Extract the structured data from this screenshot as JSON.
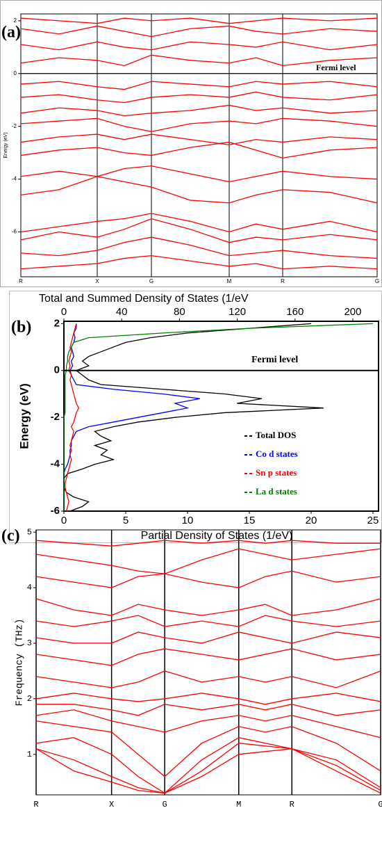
{
  "chart_data": [
    {
      "type": "line",
      "panel": "(a)",
      "ylabel": "Energy (eV)",
      "annotation": "Fermi level",
      "hline": 0,
      "color": "#ff0000",
      "x": [
        0,
        0.55,
        1.1,
        1.49,
        1.88,
        2.44,
        3.0,
        3.385,
        3.77,
        4.45,
        5.13
      ],
      "xlim": [
        0,
        5.13
      ],
      "xticks": [
        {
          "value": 0,
          "label": "R"
        },
        {
          "value": 1.1,
          "label": "X"
        },
        {
          "value": 1.88,
          "label": "G"
        },
        {
          "value": 3.0,
          "label": "M"
        },
        {
          "value": 3.77,
          "label": "R"
        },
        {
          "value": 5.13,
          "label": "G"
        }
      ],
      "ylim": [
        -7.7,
        2.26
      ],
      "yticks": [
        -6,
        -4,
        -2,
        0,
        2
      ],
      "series": [
        {
          "values": [
            -7.4,
            -7.3,
            -7.2,
            -7.0,
            -6.9,
            -7.1,
            -7.3,
            -7.2,
            -7.4,
            -7.3,
            -7.4
          ]
        },
        {
          "values": [
            -6.8,
            -6.9,
            -6.7,
            -6.4,
            -6.2,
            -6.5,
            -6.9,
            -6.8,
            -6.7,
            -6.9,
            -7.0
          ]
        },
        {
          "values": [
            -6.3,
            -6.0,
            -6.2,
            -5.9,
            -5.5,
            -5.9,
            -6.4,
            -6.2,
            -6.3,
            -6.1,
            -6.3
          ]
        },
        {
          "values": [
            -6.0,
            -5.8,
            -5.6,
            -5.5,
            -5.3,
            -5.6,
            -6.0,
            -5.7,
            -5.9,
            -5.6,
            -6.0
          ]
        },
        {
          "values": [
            -4.6,
            -4.4,
            -3.9,
            -4.1,
            -4.3,
            -4.8,
            -4.9,
            -4.6,
            -4.4,
            -4.5,
            -4.9
          ]
        },
        {
          "values": [
            -3.9,
            -3.7,
            -3.9,
            -3.6,
            -3.5,
            -3.8,
            -4.1,
            -3.9,
            -3.7,
            -3.9,
            -4.0
          ]
        },
        {
          "values": [
            -3.1,
            -2.9,
            -2.8,
            -3.0,
            -3.1,
            -2.8,
            -2.6,
            -2.9,
            -3.2,
            -2.9,
            -2.8
          ]
        },
        {
          "values": [
            -2.6,
            -2.4,
            -2.3,
            -2.5,
            -2.3,
            -2.5,
            -2.7,
            -2.5,
            -2.6,
            -2.4,
            -2.5
          ]
        },
        {
          "values": [
            -1.9,
            -1.8,
            -1.7,
            -2.0,
            -2.2,
            -1.9,
            -1.8,
            -1.9,
            -1.7,
            -1.8,
            -2.0
          ]
        },
        {
          "values": [
            -1.5,
            -1.3,
            -1.4,
            -1.6,
            -1.5,
            -1.4,
            -1.2,
            -1.4,
            -1.3,
            -1.5,
            -1.4
          ]
        },
        {
          "values": [
            -0.9,
            -0.8,
            -1.0,
            -1.1,
            -0.9,
            -0.8,
            -0.9,
            -0.7,
            -0.9,
            -1.0,
            -0.8
          ]
        },
        {
          "values": [
            -0.4,
            -0.3,
            -0.5,
            -0.6,
            -0.3,
            -0.4,
            -0.5,
            -0.3,
            -0.4,
            -0.3,
            -0.5
          ]
        },
        {
          "values": [
            0.4,
            0.6,
            0.5,
            0.3,
            0.7,
            0.5,
            0.4,
            0.6,
            0.3,
            0.5,
            0.6
          ]
        },
        {
          "values": [
            1.1,
            0.9,
            1.2,
            1.0,
            0.9,
            1.2,
            1.1,
            1.0,
            1.2,
            0.9,
            1.1
          ]
        },
        {
          "values": [
            1.7,
            1.5,
            1.8,
            1.6,
            1.4,
            1.7,
            1.8,
            1.6,
            1.5,
            1.7,
            1.6
          ]
        },
        {
          "values": [
            2.1,
            2.0,
            1.9,
            2.1,
            2.0,
            2.1,
            1.9,
            2.0,
            2.1,
            2.0,
            2.1
          ]
        }
      ]
    },
    {
      "type": "line",
      "orientation": "horizontal",
      "panel": "(b)",
      "title": "Total and Summed Density of States (1/eV",
      "xlabel": "Partial Density of States (1/eV)",
      "ylabel": "Energy (eV)",
      "annotation": "Fermi level",
      "hline": 0,
      "y": [
        -6,
        -5.8,
        -5.6,
        -5.4,
        -5.2,
        -5.0,
        -4.8,
        -4.6,
        -4.4,
        -4.2,
        -4.0,
        -3.8,
        -3.6,
        -3.4,
        -3.2,
        -3.0,
        -2.8,
        -2.6,
        -2.4,
        -2.2,
        -2.0,
        -1.8,
        -1.6,
        -1.4,
        -1.2,
        -1.0,
        -0.8,
        -0.6,
        -0.4,
        -0.2,
        0,
        0.2,
        0.4,
        0.6,
        0.8,
        1.0,
        1.2,
        1.4,
        1.6,
        1.8,
        2.0
      ],
      "xlim": [
        0,
        25.45
      ],
      "xticks": [
        0,
        5,
        10,
        15,
        20,
        25
      ],
      "x2lim": [
        0,
        217.8
      ],
      "x2ticks": [
        0,
        40,
        80,
        120,
        160,
        200
      ],
      "ylim": [
        -6,
        2.1
      ],
      "yticks": [
        -6,
        -4,
        -2,
        0,
        2
      ],
      "series": [
        {
          "name": "Total DOS",
          "color": "#000000",
          "values": [
            0.5,
            1.5,
            2,
            0.8,
            0.2,
            0,
            0,
            0,
            0.3,
            1.5,
            2.5,
            4,
            3,
            3.5,
            2.5,
            3.8,
            3,
            2.5,
            4,
            6,
            9,
            13,
            21,
            14,
            16,
            13,
            8,
            3,
            2,
            1.5,
            1,
            2,
            1.5,
            2,
            3,
            4,
            5,
            7,
            10,
            15,
            20
          ]
        },
        {
          "name": "Co d states",
          "color": "#0000ff",
          "values": [
            0,
            0,
            0,
            0,
            0,
            0,
            0,
            0,
            0,
            0.1,
            0.3,
            0.4,
            0.5,
            0.5,
            0.6,
            0.6,
            0.8,
            1,
            2,
            4,
            6,
            8,
            10,
            9,
            11,
            8,
            4,
            1,
            0.8,
            0.6,
            0.5,
            0.7,
            0.6,
            0.8,
            0.7,
            0.6,
            0.8,
            0.9,
            0.8,
            1,
            1
          ]
        },
        {
          "name": "Sn p states",
          "color": "#ff0000",
          "values": [
            0.2,
            0.3,
            0.4,
            0.3,
            0.2,
            0.1,
            0.1,
            0.2,
            0.3,
            0.4,
            0.5,
            0.6,
            0.5,
            0.6,
            0.5,
            0.6,
            0.7,
            0.8,
            0.6,
            0.8,
            0.9,
            1,
            1.2,
            1,
            0.9,
            0.8,
            0.7,
            0.6,
            0.5,
            0.6,
            0.4,
            0.5,
            0.4,
            0.5,
            0.6,
            0.5,
            0.6,
            0.7,
            0.8,
            0.9,
            1
          ]
        },
        {
          "name": "La d states",
          "color": "#008000",
          "values": [
            0,
            0,
            0,
            0,
            0,
            0,
            0,
            0,
            0,
            0,
            0,
            0,
            0,
            0,
            0,
            0,
            0,
            0,
            0,
            0,
            0,
            0.1,
            0.1,
            0.1,
            0.1,
            0.1,
            0.1,
            0.1,
            0.1,
            0.1,
            0.2,
            0.2,
            0.3,
            0.3,
            0.4,
            0.6,
            0.8,
            2,
            8,
            15,
            25
          ]
        }
      ]
    },
    {
      "type": "line",
      "panel": "(c)",
      "ylabel": "Frequency (THz)",
      "color": "#ff0000",
      "x": [
        0,
        0.54,
        1.08,
        1.46,
        1.84,
        2.37,
        2.9,
        3.28,
        3.66,
        4.295,
        4.93
      ],
      "xlim": [
        0,
        4.93
      ],
      "xticks": [
        {
          "value": 0,
          "label": "R"
        },
        {
          "value": 1.08,
          "label": "X"
        },
        {
          "value": 1.84,
          "label": "G"
        },
        {
          "value": 2.9,
          "label": "M"
        },
        {
          "value": 3.66,
          "label": "R"
        },
        {
          "value": 4.93,
          "label": "G"
        }
      ],
      "ylim": [
        0.27,
        5.04
      ],
      "yticks": [
        1,
        2,
        3,
        4,
        5
      ],
      "series": [
        {
          "values": [
            1.1,
            0.7,
            0.5,
            0.35,
            0.3,
            0.6,
            1.0,
            1.05,
            1.1,
            0.7,
            0.3
          ]
        },
        {
          "values": [
            1.1,
            0.9,
            0.6,
            0.4,
            0.3,
            0.7,
            1.2,
            1.15,
            1.1,
            0.8,
            0.35
          ]
        },
        {
          "values": [
            1.2,
            1.3,
            1.0,
            0.6,
            0.3,
            0.9,
            1.3,
            1.2,
            1.1,
            0.9,
            0.4
          ]
        },
        {
          "values": [
            1.6,
            1.5,
            1.4,
            1.0,
            0.6,
            1.2,
            1.5,
            1.4,
            1.5,
            1.2,
            0.7
          ]
        },
        {
          "values": [
            1.7,
            1.8,
            1.6,
            1.5,
            1.4,
            1.6,
            1.7,
            1.6,
            1.7,
            1.5,
            1.3
          ]
        },
        {
          "values": [
            1.9,
            1.9,
            1.8,
            1.7,
            1.9,
            1.8,
            1.9,
            1.8,
            1.9,
            1.7,
            1.8
          ]
        },
        {
          "values": [
            2.0,
            2.1,
            2.0,
            1.95,
            2.0,
            2.1,
            2.0,
            1.9,
            2.0,
            2.1,
            1.95
          ]
        },
        {
          "values": [
            2.4,
            2.3,
            2.2,
            2.3,
            2.5,
            2.3,
            2.4,
            2.3,
            2.4,
            2.2,
            2.5
          ]
        },
        {
          "values": [
            2.8,
            2.7,
            2.6,
            2.8,
            2.9,
            2.8,
            2.7,
            2.8,
            2.9,
            2.7,
            2.8
          ]
        },
        {
          "values": [
            3.1,
            3.0,
            3.0,
            3.2,
            3.1,
            3.0,
            3.2,
            3.1,
            3.0,
            3.2,
            3.1
          ]
        },
        {
          "values": [
            3.4,
            3.3,
            3.4,
            3.5,
            3.3,
            3.4,
            3.3,
            3.5,
            3.4,
            3.3,
            3.4
          ]
        },
        {
          "values": [
            3.8,
            3.6,
            3.5,
            3.7,
            3.6,
            3.5,
            3.6,
            3.7,
            3.5,
            3.6,
            3.8
          ]
        },
        {
          "values": [
            4.2,
            4.1,
            4.0,
            4.2,
            4.25,
            4.1,
            4.0,
            4.2,
            4.3,
            4.1,
            4.2
          ]
        },
        {
          "values": [
            4.6,
            4.5,
            4.4,
            4.3,
            4.25,
            4.5,
            4.7,
            4.6,
            4.5,
            4.6,
            4.7
          ]
        },
        {
          "values": [
            4.85,
            4.8,
            4.75,
            4.8,
            4.85,
            4.8,
            4.85,
            4.8,
            4.85,
            4.8,
            4.8
          ]
        }
      ]
    }
  ]
}
